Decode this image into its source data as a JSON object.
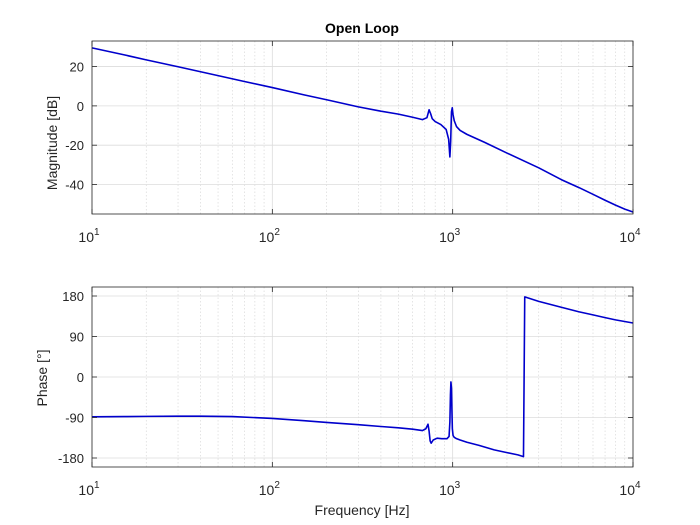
{
  "chart_data": [
    {
      "type": "line",
      "title": "Open Loop",
      "xlabel": "",
      "ylabel": "Magnitude [dB]",
      "x_scale": "log",
      "xlim": [
        10,
        10000
      ],
      "ylim": [
        -55,
        33
      ],
      "x_ticks": [
        {
          "value": 10,
          "base": "10",
          "exp": "1"
        },
        {
          "value": 100,
          "base": "10",
          "exp": "2"
        },
        {
          "value": 1000,
          "base": "10",
          "exp": "3"
        },
        {
          "value": 10000,
          "base": "10",
          "exp": "4"
        }
      ],
      "y_ticks": [
        {
          "value": 20,
          "label": "20"
        },
        {
          "value": 0,
          "label": "0"
        },
        {
          "value": -20,
          "label": "-20"
        },
        {
          "value": -40,
          "label": "-40"
        }
      ],
      "grid": true,
      "color": "#0000cc",
      "series": [
        {
          "x": [
            10,
            15,
            20,
            30,
            50,
            70,
            100,
            150,
            200,
            300,
            400,
            500,
            600,
            680,
            720,
            740,
            755,
            770,
            800,
            860,
            920,
            950,
            965,
            975,
            985,
            995,
            1005,
            1020,
            1050,
            1100,
            1200,
            1500,
            2000,
            3000,
            4000,
            5000,
            6000,
            7000,
            8000,
            9000,
            10000
          ],
          "y": [
            29.5,
            26.0,
            23.4,
            19.9,
            15.4,
            12.4,
            9.3,
            5.6,
            3.1,
            -0.5,
            -2.7,
            -4.2,
            -5.8,
            -7.0,
            -6.0,
            -2.0,
            -4.0,
            -6.5,
            -8.0,
            -9.5,
            -12.0,
            -17.0,
            -26.0,
            -18.0,
            -3.0,
            -1.0,
            -4.5,
            -7.5,
            -10.5,
            -12.5,
            -14.5,
            -18.5,
            -24.0,
            -31.5,
            -37.5,
            -41.5,
            -45.0,
            -48.0,
            -50.5,
            -52.5,
            -54.0
          ]
        }
      ]
    },
    {
      "type": "line",
      "title": "",
      "xlabel": "Frequency [Hz]",
      "ylabel": "Phase [°]",
      "x_scale": "log",
      "xlim": [
        10,
        10000
      ],
      "ylim": [
        -200,
        200
      ],
      "x_ticks": [
        {
          "value": 10,
          "base": "10",
          "exp": "1"
        },
        {
          "value": 100,
          "base": "10",
          "exp": "2"
        },
        {
          "value": 1000,
          "base": "10",
          "exp": "3"
        },
        {
          "value": 10000,
          "base": "10",
          "exp": "4"
        }
      ],
      "y_ticks": [
        {
          "value": 180,
          "label": "180"
        },
        {
          "value": 90,
          "label": "90"
        },
        {
          "value": 0,
          "label": "0"
        },
        {
          "value": -90,
          "label": "-90"
        },
        {
          "value": -180,
          "label": "-180"
        }
      ],
      "grid": true,
      "color": "#0000cc",
      "series": [
        {
          "x": [
            10,
            15,
            20,
            30,
            40,
            60,
            100,
            150,
            200,
            300,
            400,
            500,
            600,
            680,
            710,
            730,
            740,
            750,
            760,
            780,
            820,
            870,
            900,
            930,
            955,
            965,
            972,
            978,
            985,
            990,
            996,
            1005,
            1020,
            1050,
            1100,
            1200,
            1400,
            1700,
            2000,
            2300,
            2470,
            2490,
            2510,
            3000,
            4000,
            5000,
            6000,
            7000,
            8000,
            10000
          ],
          "y": [
            -88.5,
            -88.0,
            -87.5,
            -87.0,
            -87.0,
            -88.0,
            -92.0,
            -97.0,
            -101.0,
            -106.0,
            -110.0,
            -113.0,
            -116.0,
            -119.0,
            -115.0,
            -105.0,
            -120.0,
            -142.0,
            -147.0,
            -140.0,
            -136.0,
            -137.0,
            -137.0,
            -137.0,
            -132.0,
            -100.0,
            -40.0,
            -11.0,
            -25.0,
            -70.0,
            -115.0,
            -130.0,
            -134.0,
            -137.0,
            -140.0,
            -145.0,
            -152.0,
            -162.0,
            -168.0,
            -173.0,
            -177.0,
            0.0,
            178.0,
            168.0,
            155.0,
            145.0,
            138.0,
            132.0,
            127.0,
            120.0
          ]
        }
      ]
    }
  ]
}
